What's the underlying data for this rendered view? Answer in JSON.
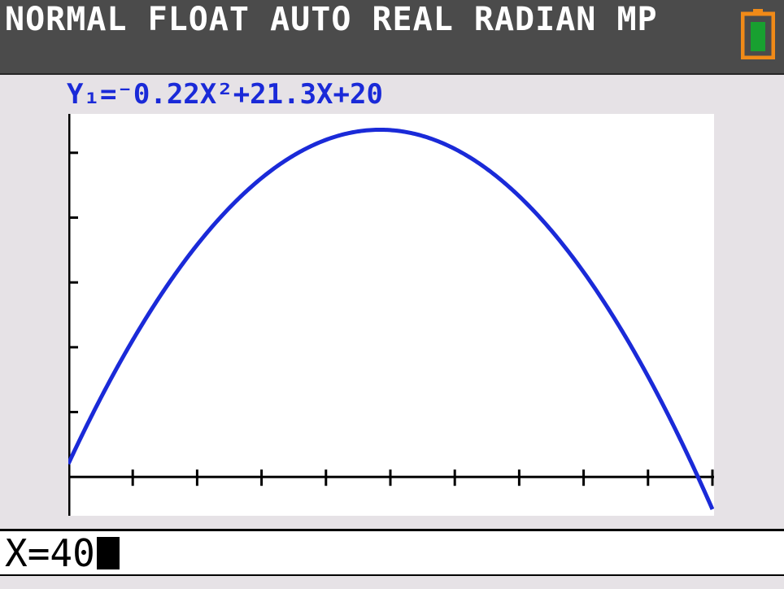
{
  "status_bar": {
    "text": "NORMAL FLOAT AUTO REAL RADIAN MP",
    "battery_icon": "battery-icon",
    "battery_color": "#f08a18",
    "battery_fill_color": "#18a030"
  },
  "graph": {
    "equation": "Y₁=⁻0.22X²+21.3X+20",
    "line_color": "#1a2ad8"
  },
  "chart_data": {
    "type": "line",
    "title": "Y₁=⁻0.22X²+21.3X+20",
    "function": {
      "a": -0.22,
      "b": 21.3,
      "c": 20
    },
    "xlim": [
      0,
      100
    ],
    "ylim": [
      -60,
      560
    ],
    "xscl": 10,
    "yscl": 100,
    "x_ticks": [
      10,
      20,
      30,
      40,
      50,
      60,
      70,
      80,
      90,
      100
    ],
    "y_ticks": [
      100,
      200,
      300,
      400,
      500
    ],
    "grid": false,
    "xlabel": "",
    "ylabel": ""
  },
  "entry": {
    "text": "X=40"
  }
}
